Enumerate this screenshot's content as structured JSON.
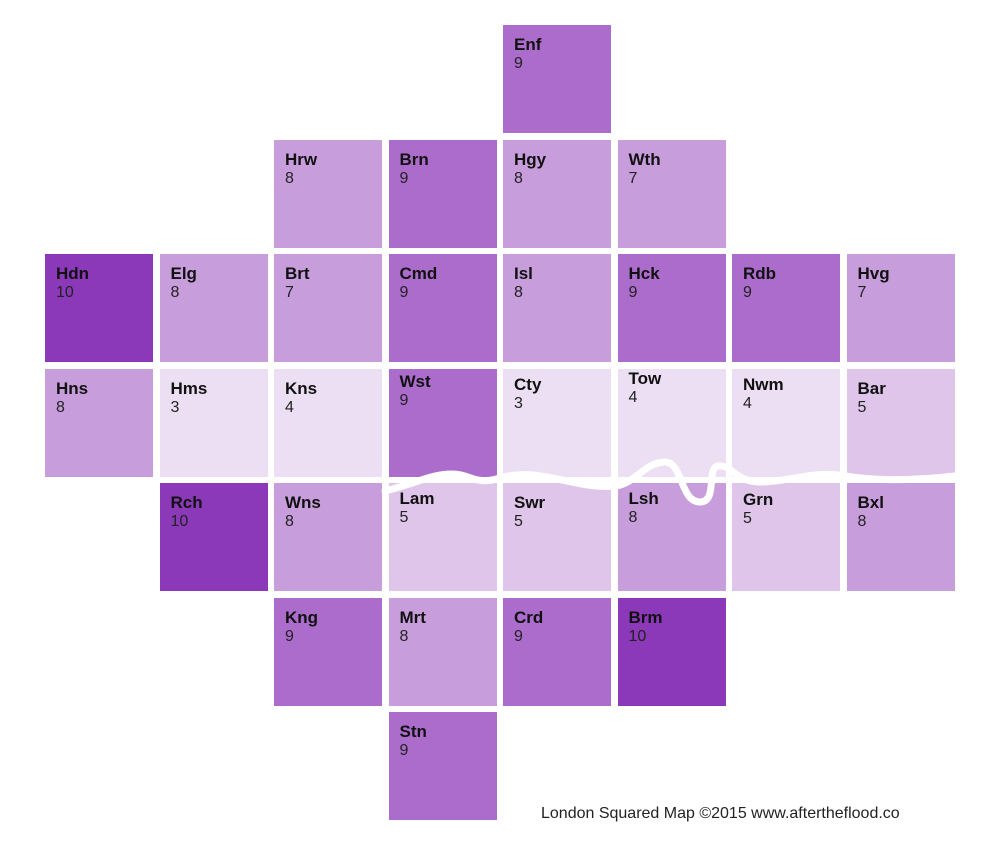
{
  "credit": "London Squared Map ©2015 www.aftertheflood.co",
  "colors": {
    "3": "#ecdff3",
    "4": "#ecdff3",
    "5": "#dfc5e9",
    "7": "#c89ddc",
    "8": "#c89ddc",
    "9": "#ab6ccc",
    "10": "#8b38b9",
    "river": "#ffffff"
  },
  "boroughs": [
    {
      "code": "Enf",
      "value": 9
    },
    {
      "code": "Hrw",
      "value": 8
    },
    {
      "code": "Brn",
      "value": 9
    },
    {
      "code": "Hgy",
      "value": 8
    },
    {
      "code": "Wth",
      "value": 7
    },
    {
      "code": "Hdn",
      "value": 10
    },
    {
      "code": "Elg",
      "value": 8
    },
    {
      "code": "Brt",
      "value": 7
    },
    {
      "code": "Cmd",
      "value": 9
    },
    {
      "code": "Isl",
      "value": 8
    },
    {
      "code": "Hck",
      "value": 9
    },
    {
      "code": "Rdb",
      "value": 9
    },
    {
      "code": "Hvg",
      "value": 7
    },
    {
      "code": "Hns",
      "value": 8
    },
    {
      "code": "Hms",
      "value": 3
    },
    {
      "code": "Kns",
      "value": 4
    },
    {
      "code": "Wst",
      "value": 9
    },
    {
      "code": "Cty",
      "value": 3
    },
    {
      "code": "Tow",
      "value": 4
    },
    {
      "code": "Nwm",
      "value": 4
    },
    {
      "code": "Bar",
      "value": 5
    },
    {
      "code": "Rch",
      "value": 10
    },
    {
      "code": "Wns",
      "value": 8
    },
    {
      "code": "Lam",
      "value": 5
    },
    {
      "code": "Swr",
      "value": 5
    },
    {
      "code": "Lsh",
      "value": 8
    },
    {
      "code": "Grn",
      "value": 5
    },
    {
      "code": "Bxl",
      "value": 8
    },
    {
      "code": "Kng",
      "value": 9
    },
    {
      "code": "Mrt",
      "value": 8
    },
    {
      "code": "Crd",
      "value": 9
    },
    {
      "code": "Brm",
      "value": 10
    },
    {
      "code": "Stn",
      "value": 9
    }
  ]
}
